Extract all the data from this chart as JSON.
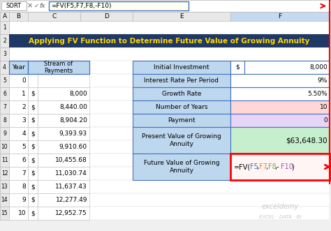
{
  "title": "Applying FV Function to Determine Future Value of Growing Annuity",
  "title_bg": "#1F3864",
  "title_color": "#FFD700",
  "formula_bar_text": "=FV(F5,F7,F8,-F10)",
  "formula_bar_label": "SORT",
  "col_headers": [
    "A",
    "B",
    "C",
    "D",
    "E",
    "F"
  ],
  "left_table": {
    "header_bg": "#BDD7EE",
    "header_border": "#4472C4",
    "col1_header": "Year",
    "col2_header": "Stream of\nPayments",
    "rows": [
      [
        0,
        "",
        ""
      ],
      [
        1,
        "$",
        "8,000"
      ],
      [
        2,
        "$",
        "8,440.00"
      ],
      [
        3,
        "$",
        "8,904.20"
      ],
      [
        4,
        "$",
        "9,393.93"
      ],
      [
        5,
        "$",
        "9,910.60"
      ],
      [
        6,
        "$",
        "10,455.68"
      ],
      [
        7,
        "$",
        "11,030.74"
      ],
      [
        8,
        "$",
        "11,637.43"
      ],
      [
        9,
        "$",
        "12,277.49"
      ],
      [
        10,
        "$",
        "12,952.75"
      ]
    ]
  },
  "right_table": {
    "header_bg": "#BDD7EE",
    "header_border": "#4472C4",
    "rows": [
      {
        "label": "Initial Investment",
        "dollar": "$",
        "value": "8,000",
        "label_bg": "#BDD7EE",
        "val_bg": "#FFFFFF"
      },
      {
        "label": "Interest Rate Per Period",
        "dollar": "",
        "value": "9%",
        "label_bg": "#BDD7EE",
        "val_bg": "#FFFFFF"
      },
      {
        "label": "Growth Rate",
        "dollar": "",
        "value": "5.50%",
        "label_bg": "#BDD7EE",
        "val_bg": "#FFFFFF"
      },
      {
        "label": "Number of Years",
        "dollar": "",
        "value": "10",
        "label_bg": "#BDD7EE",
        "val_bg": "#FFD7D7"
      },
      {
        "label": "Payment",
        "dollar": "",
        "value": "0",
        "label_bg": "#BDD7EE",
        "val_bg": "#E8D5F5"
      }
    ],
    "pv_label": "Present Value of Growing\nAnnuity",
    "pv_value": "$63,648.30",
    "pv_val_bg": "#C6EFCE",
    "pv_label_bg": "#BDD7EE",
    "fv_label": "Future Value of Growing\nAnnuity",
    "fv_value": "=FV(F5,F7,F8,-F10)",
    "fv_val_bg": "#FFF5F5",
    "fv_label_bg": "#BDD7EE",
    "fv_border": "#FF0000"
  },
  "watermark_line1": "exceldemy",
  "watermark_line2": "EXCEL · DATA · BI",
  "formula_bg": "#FFFFF0"
}
